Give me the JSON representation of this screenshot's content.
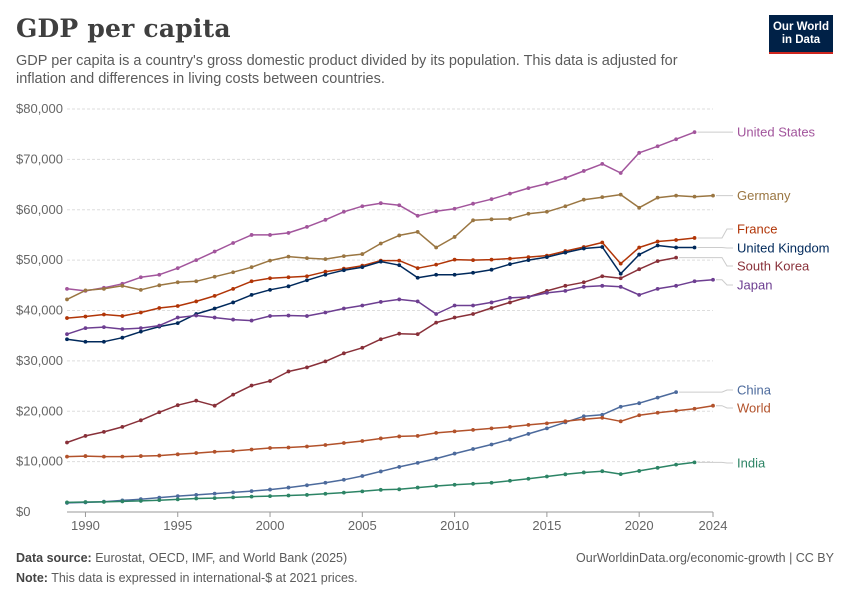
{
  "header": {
    "title": "GDP per capita",
    "subtitle": "GDP per capita is a country's gross domestic product divided by its population. This data is adjusted for inflation and differences in living costs between countries.",
    "logo_line1": "Our World",
    "logo_line2": "in Data"
  },
  "footer": {
    "source_label": "Data source:",
    "source_text": "Eurostat, OECD, IMF, and World Bank (2025)",
    "note_label": "Note:",
    "note_text": "This data is expressed in international-$ at 2021 prices.",
    "link": "OurWorldinData.org/economic-growth | CC BY"
  },
  "colors": {
    "United States": "#a2559c",
    "Germany": "#9a7642",
    "France": "#b13507",
    "United Kingdom": "#00295b",
    "South Korea": "#883039",
    "Japan": "#6d3e91",
    "China": "#4c6a9c",
    "World": "#b2522b",
    "India": "#2c8465"
  },
  "chart_data": {
    "type": "line",
    "title": "GDP per capita",
    "x": [
      1989,
      1990,
      1991,
      1992,
      1993,
      1994,
      1995,
      1996,
      1997,
      1998,
      1999,
      2000,
      2001,
      2002,
      2003,
      2004,
      2005,
      2006,
      2007,
      2008,
      2009,
      2010,
      2011,
      2012,
      2013,
      2014,
      2015,
      2016,
      2017,
      2018,
      2019,
      2020,
      2021,
      2022,
      2023,
      2024
    ],
    "xlim": [
      1989,
      2024
    ],
    "ylim": [
      0,
      80000
    ],
    "x_ticks": [
      1990,
      1995,
      2000,
      2005,
      2010,
      2015,
      2020,
      2024
    ],
    "y_ticks": [
      0,
      10000,
      20000,
      30000,
      40000,
      50000,
      60000,
      70000,
      80000
    ],
    "y_tick_labels": [
      "$0",
      "$10,000",
      "$20,000",
      "$30,000",
      "$40,000",
      "$50,000",
      "$60,000",
      "$70,000",
      "$80,000"
    ],
    "grid": "horizontal dashed",
    "legend": "line-end labels on the right",
    "series": [
      {
        "name": "United States",
        "values": [
          44300,
          43900,
          44500,
          45300,
          46600,
          47100,
          48400,
          50000,
          51700,
          53400,
          55000,
          55000,
          55400,
          56600,
          58000,
          59600,
          60700,
          61300,
          60900,
          58800,
          59700,
          60200,
          61200,
          62100,
          63200,
          64300,
          65200,
          66300,
          67700,
          69100,
          67300,
          71300,
          72600,
          74000,
          75400,
          null
        ]
      },
      {
        "name": "Germany",
        "values": [
          42200,
          44000,
          44300,
          44900,
          44100,
          45000,
          45600,
          45800,
          46700,
          47600,
          48600,
          49900,
          50700,
          50400,
          50200,
          50800,
          51200,
          53300,
          54900,
          55600,
          52500,
          54600,
          57900,
          58100,
          58200,
          59200,
          59600,
          60700,
          62000,
          62500,
          63000,
          60400,
          62400,
          62800,
          62600,
          62800
        ]
      },
      {
        "name": "France",
        "values": [
          38500,
          38800,
          39200,
          38900,
          39600,
          40500,
          40900,
          41800,
          42900,
          44300,
          45800,
          46400,
          46600,
          46800,
          47700,
          48300,
          48900,
          49900,
          49900,
          48400,
          49100,
          50100,
          50000,
          50100,
          50300,
          50600,
          50900,
          51800,
          52600,
          53500,
          49300,
          52500,
          53700,
          54000,
          54400,
          null
        ]
      },
      {
        "name": "United Kingdom",
        "values": [
          34300,
          33800,
          33800,
          34600,
          35800,
          36800,
          37500,
          39300,
          40400,
          41600,
          43100,
          44100,
          44800,
          46000,
          47100,
          48000,
          48600,
          49700,
          49000,
          46500,
          47100,
          47100,
          47500,
          48100,
          49200,
          50000,
          50600,
          51500,
          52300,
          52600,
          47300,
          51100,
          52900,
          52500,
          52500,
          null
        ]
      },
      {
        "name": "South Korea",
        "values": [
          13800,
          15100,
          15900,
          16900,
          18200,
          19800,
          21200,
          22100,
          21100,
          23300,
          25100,
          26000,
          27900,
          28700,
          29900,
          31500,
          32600,
          34300,
          35400,
          35300,
          37600,
          38600,
          39300,
          40500,
          41600,
          42700,
          43900,
          44900,
          45600,
          46800,
          46400,
          48200,
          49800,
          50500,
          null,
          null
        ]
      },
      {
        "name": "Japan",
        "values": [
          35300,
          36500,
          36700,
          36300,
          36500,
          37000,
          38600,
          39000,
          38600,
          38200,
          38000,
          38900,
          39000,
          38900,
          39600,
          40400,
          41000,
          41700,
          42200,
          41800,
          39300,
          41000,
          41000,
          41600,
          42500,
          42700,
          43500,
          43900,
          44700,
          44900,
          44700,
          43100,
          44300,
          44900,
          45800,
          46100
        ]
      },
      {
        "name": "China",
        "values": [
          1800,
          1900,
          2050,
          2300,
          2550,
          2850,
          3150,
          3400,
          3650,
          3900,
          4150,
          4450,
          4850,
          5300,
          5800,
          6400,
          7150,
          8050,
          8950,
          9750,
          10600,
          11600,
          12500,
          13400,
          14400,
          15500,
          16600,
          17800,
          19000,
          19300,
          20900,
          21600,
          22700,
          23800,
          null,
          null
        ]
      },
      {
        "name": "World",
        "values": [
          11000,
          11100,
          11000,
          11000,
          11100,
          11200,
          11450,
          11700,
          11950,
          12100,
          12400,
          12700,
          12800,
          13000,
          13300,
          13700,
          14100,
          14600,
          15000,
          15100,
          15700,
          16000,
          16300,
          16600,
          16900,
          17300,
          17600,
          18000,
          18400,
          18700,
          18000,
          19200,
          19700,
          20100,
          20500,
          21100
        ]
      },
      {
        "name": "India",
        "values": [
          1900,
          1990,
          2000,
          2100,
          2200,
          2350,
          2500,
          2680,
          2760,
          2900,
          3050,
          3150,
          3270,
          3390,
          3620,
          3850,
          4100,
          4400,
          4500,
          4850,
          5160,
          5400,
          5600,
          5800,
          6200,
          6600,
          7040,
          7480,
          7850,
          8100,
          7520,
          8150,
          8770,
          9400,
          9850,
          null
        ]
      }
    ]
  },
  "series_labels": {
    "United States": "United States",
    "Germany": "Germany",
    "France": "France",
    "United Kingdom": "United Kingdom",
    "South Korea": "South Korea",
    "Japan": "Japan",
    "China": "China",
    "World": "World",
    "India": "India"
  }
}
